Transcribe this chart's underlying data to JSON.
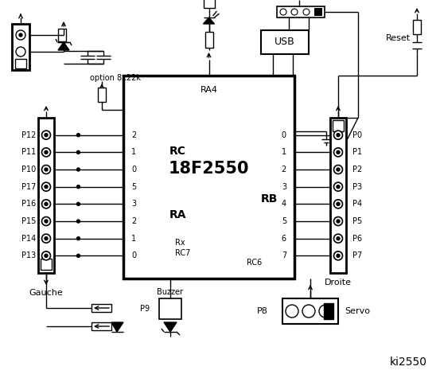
{
  "title": "ki2550",
  "bg_color": "#ffffff",
  "chip_label": "18F2550",
  "chip_label2": "RA4",
  "left_connector_label": "Gauche",
  "right_connector_label": "Droite",
  "option_label": "option 8x22k",
  "buzzer_label": "Buzzer",
  "usb_label": "USB",
  "reset_label": "Reset",
  "servo_label": "Servo",
  "rc_label": "RC",
  "ra_label": "RA",
  "rb_label": "RB",
  "rx_label": "Rx",
  "rc7_label": "RC7",
  "rc6_label": "RC6",
  "p8_label": "P8",
  "p9_label": "P9",
  "left_pins": [
    "P12",
    "P11",
    "P10",
    "P17",
    "P16",
    "P15",
    "P14",
    "P13"
  ],
  "rc_pins": [
    "2",
    "1",
    "0",
    "5",
    "3",
    "2",
    "1",
    "0"
  ],
  "rb_pins": [
    "0",
    "1",
    "2",
    "3",
    "4",
    "5",
    "6",
    "7"
  ],
  "right_pins": [
    "P0",
    "P1",
    "P2",
    "P3",
    "P4",
    "P5",
    "P6",
    "P7"
  ]
}
